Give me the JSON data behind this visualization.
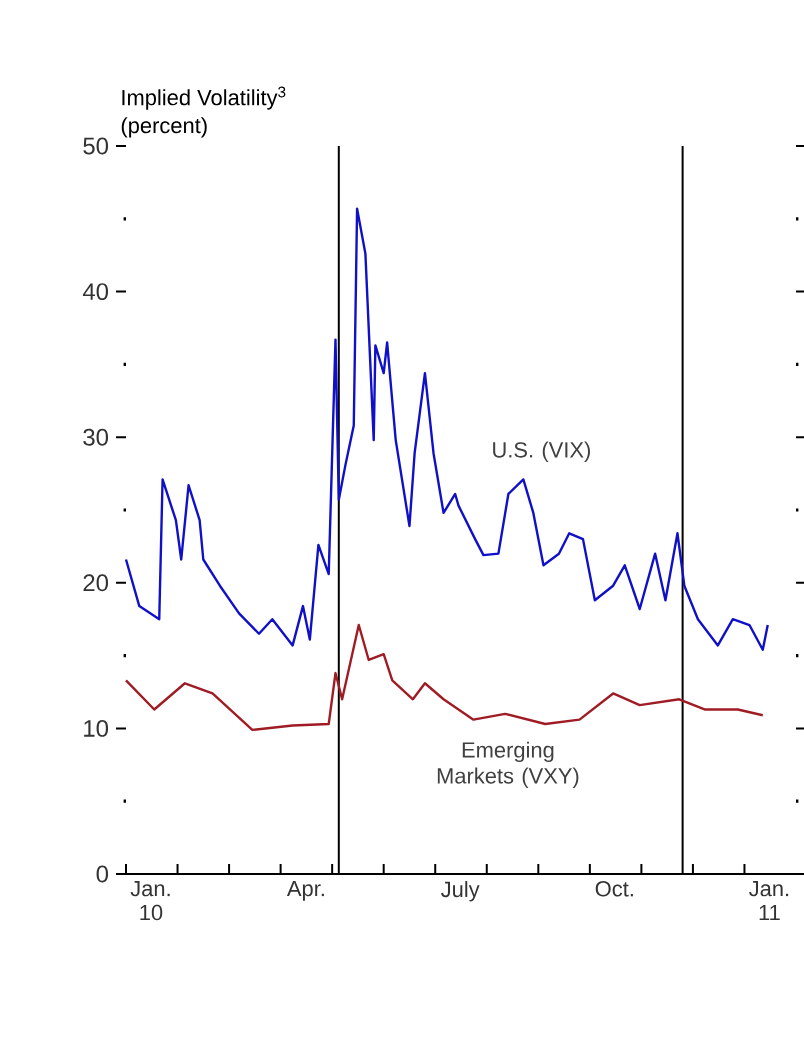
{
  "chart_data": {
    "type": "line",
    "title": "Implied Volatility$^{3}$",
    "subtitle": "(percent)",
    "xlim": [
      "2010-01-01",
      "2011-02-01"
    ],
    "ylim": [
      0,
      50
    ],
    "xticks": [
      {
        "value": "2010-01-01",
        "label": null
      },
      {
        "value": "2010-02-01",
        "label": null
      },
      {
        "value": "2010-03-01",
        "label": null
      },
      {
        "value": "2010-04-01",
        "label": null
      },
      {
        "value": "2010-05-01",
        "label": null
      },
      {
        "value": "2010-06-01",
        "label": null
      },
      {
        "value": "2010-07-01",
        "label": null
      },
      {
        "value": "2010-08-01",
        "label": null
      },
      {
        "value": "2010-09-01",
        "label": null
      },
      {
        "value": "2010-10-01",
        "label": null
      },
      {
        "value": "2010-11-01",
        "label": null
      },
      {
        "value": "2010-12-01",
        "label": null
      },
      {
        "value": "2011-01-01",
        "label": null
      },
      {
        "value": "2010-01-16",
        "label": "Jan. 10"
      },
      {
        "value": "2010-04-16",
        "label": "Apr."
      },
      {
        "value": "2010-07-16",
        "label": "July"
      },
      {
        "value": "2010-10-16",
        "label": "Oct."
      },
      {
        "value": "2011-01-16",
        "label": "Jan. 11"
      }
    ],
    "yticks": [
      0,
      {
        "value": 5,
        "label": null
      },
      10,
      {
        "value": 15,
        "label": null
      },
      20,
      {
        "value": 25,
        "label": null
      },
      30,
      {
        "value": 35,
        "label": null
      },
      40,
      {
        "value": 45,
        "label": null
      },
      50
    ],
    "ref_lines": [
      {
        "axis": "x",
        "value": "2010-05-05",
        "color": "#000000"
      },
      {
        "axis": "x",
        "value": "2010-11-25",
        "color": "#000000"
      }
    ],
    "series": [
      {
        "name": "U.S. (VIX)",
        "color": "#1010c8",
        "x": [
          "2010-01-01",
          "2010-01-09",
          "2010-01-21",
          "2010-01-23",
          "2010-01-31",
          "2010-02-03",
          "2010-02-07",
          "2010-02-13",
          "2010-02-15",
          "2010-02-24",
          "2010-03-07",
          "2010-03-19",
          "2010-03-27",
          "2010-04-08",
          "2010-04-14",
          "2010-04-18",
          "2010-04-23",
          "2010-04-29",
          "2010-05-03",
          "2010-05-05",
          "2010-05-09",
          "2010-05-14",
          "2010-05-16",
          "2010-05-21",
          "2010-05-26",
          "2010-05-27",
          "2010-06-01",
          "2010-06-03",
          "2010-06-08",
          "2010-06-16",
          "2010-06-19",
          "2010-06-25",
          "2010-06-30",
          "2010-07-06",
          "2010-07-13",
          "2010-07-15",
          "2010-07-25",
          "2010-07-30",
          "2010-08-08",
          "2010-08-14",
          "2010-08-23",
          "2010-08-29",
          "2010-09-04",
          "2010-09-13",
          "2010-09-19",
          "2010-09-27",
          "2010-10-04",
          "2010-10-15",
          "2010-10-22",
          "2010-10-31",
          "2010-11-09",
          "2010-11-15",
          "2010-11-22",
          "2010-11-26",
          "2010-12-04",
          "2010-12-16",
          "2010-12-25",
          "2011-01-04",
          "2011-01-12",
          "2011-01-15"
        ],
        "values": [
          21.6,
          18.4,
          17.5,
          27.1,
          24.3,
          21.6,
          26.7,
          24.3,
          21.6,
          19.8,
          17.9,
          16.5,
          17.5,
          15.7,
          18.4,
          16.1,
          22.6,
          20.6,
          36.7,
          25.7,
          28.1,
          30.8,
          45.7,
          42.6,
          29.8,
          36.3,
          34.4,
          36.5,
          29.8,
          23.9,
          28.9,
          34.4,
          28.9,
          24.8,
          26.1,
          25.3,
          23.0,
          21.9,
          22.0,
          26.1,
          27.1,
          24.8,
          21.2,
          22.0,
          23.4,
          23.0,
          18.8,
          19.8,
          21.2,
          18.2,
          22.0,
          18.8,
          23.4,
          19.8,
          17.5,
          15.7,
          17.5,
          17.1,
          15.4,
          17.1
        ]
      },
      {
        "name": "Emerging Markets (VXY)",
        "color": "#a01c24",
        "x": [
          "2010-01-01",
          "2010-01-18",
          "2010-02-05",
          "2010-02-20",
          "2010-03-15",
          "2010-04-08",
          "2010-04-29",
          "2010-05-03",
          "2010-05-07",
          "2010-05-17",
          "2010-05-23",
          "2010-06-01",
          "2010-06-06",
          "2010-06-18",
          "2010-06-25",
          "2010-07-06",
          "2010-07-24",
          "2010-08-12",
          "2010-09-05",
          "2010-09-25",
          "2010-10-15",
          "2010-10-31",
          "2010-11-23",
          "2010-12-08",
          "2010-12-28",
          "2011-01-12"
        ],
        "values": [
          13.3,
          11.3,
          13.1,
          12.4,
          9.9,
          10.2,
          10.3,
          13.8,
          12.0,
          17.1,
          14.7,
          15.1,
          13.3,
          12.0,
          13.1,
          12.0,
          10.6,
          11.0,
          10.3,
          10.6,
          12.4,
          11.6,
          12.0,
          11.3,
          11.3,
          10.9
        ]
      }
    ]
  }
}
